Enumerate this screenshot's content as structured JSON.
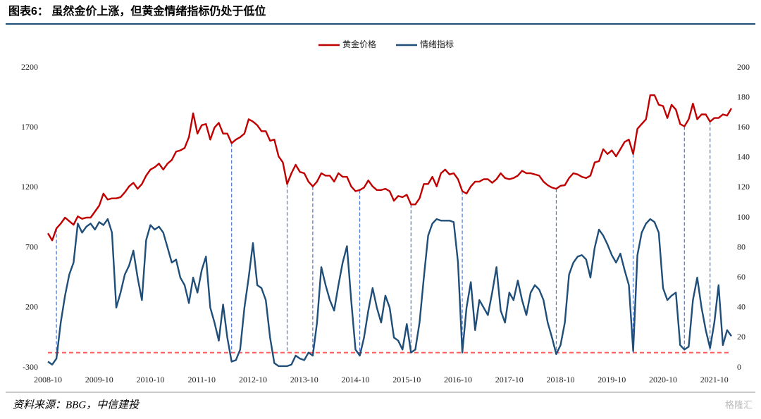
{
  "chart_data": {
    "type": "line",
    "title": "图表6： 虽然金价上涨，但黄金情绪指标仍处于低位",
    "source": "资料来源：BBG，中信建投",
    "watermark": "格隆汇",
    "x": [
      "2008-10",
      "2008-11",
      "2008-12",
      "2009-01",
      "2009-02",
      "2009-03",
      "2009-04",
      "2009-05",
      "2009-06",
      "2009-07",
      "2009-08",
      "2009-09",
      "2009-10",
      "2009-11",
      "2009-12",
      "2010-01",
      "2010-02",
      "2010-03",
      "2010-04",
      "2010-05",
      "2010-06",
      "2010-07",
      "2010-08",
      "2010-09",
      "2010-10",
      "2010-11",
      "2010-12",
      "2011-01",
      "2011-02",
      "2011-03",
      "2011-04",
      "2011-05",
      "2011-06",
      "2011-07",
      "2011-08",
      "2011-09",
      "2011-10",
      "2011-11",
      "2011-12",
      "2012-01",
      "2012-02",
      "2012-03",
      "2012-04",
      "2012-05",
      "2012-06",
      "2012-07",
      "2012-08",
      "2012-09",
      "2012-10",
      "2012-11",
      "2012-12",
      "2013-01",
      "2013-02",
      "2013-03",
      "2013-04",
      "2013-05",
      "2013-06",
      "2013-07",
      "2013-08",
      "2013-09",
      "2013-10",
      "2013-11",
      "2013-12",
      "2014-01",
      "2014-02",
      "2014-03",
      "2014-04",
      "2014-05",
      "2014-06",
      "2014-07",
      "2014-08",
      "2014-09",
      "2014-10",
      "2014-11",
      "2014-12",
      "2015-01",
      "2015-02",
      "2015-03",
      "2015-04",
      "2015-05",
      "2015-06",
      "2015-07",
      "2015-08",
      "2015-09",
      "2015-10",
      "2015-11",
      "2015-12",
      "2016-01",
      "2016-02",
      "2016-03",
      "2016-04",
      "2016-05",
      "2016-06",
      "2016-07",
      "2016-08",
      "2016-09",
      "2016-10",
      "2016-11",
      "2016-12",
      "2017-01",
      "2017-02",
      "2017-03",
      "2017-04",
      "2017-05",
      "2017-06",
      "2017-07",
      "2017-08",
      "2017-09",
      "2017-10",
      "2017-11",
      "2017-12",
      "2018-01",
      "2018-02",
      "2018-03",
      "2018-04",
      "2018-05",
      "2018-06",
      "2018-07",
      "2018-08",
      "2018-09",
      "2018-10",
      "2018-11",
      "2018-12",
      "2019-01",
      "2019-02",
      "2019-03",
      "2019-04",
      "2019-05",
      "2019-06",
      "2019-07",
      "2019-08",
      "2019-09",
      "2019-10",
      "2019-11",
      "2019-12",
      "2020-01",
      "2020-02",
      "2020-03",
      "2020-04",
      "2020-05",
      "2020-06",
      "2020-07",
      "2020-08",
      "2020-09",
      "2020-10",
      "2020-11",
      "2020-12",
      "2021-01",
      "2021-02",
      "2021-03",
      "2021-04",
      "2021-05",
      "2021-06",
      "2021-07",
      "2021-08",
      "2021-09",
      "2021-10",
      "2021-11",
      "2021-12",
      "2022-01",
      "2022-02"
    ],
    "xticks": [
      "2008-10",
      "2009-10",
      "2010-10",
      "2011-10",
      "2012-10",
      "2013-10",
      "2014-10",
      "2015-10",
      "2016-10",
      "2017-10",
      "2018-10",
      "2019-10",
      "2020-10",
      "2021-10"
    ],
    "series": [
      {
        "name": "黄金价格",
        "color": "#c00000",
        "axis": "y",
        "values": [
          820,
          760,
          860,
          900,
          950,
          920,
          890,
          960,
          940,
          950,
          950,
          1000,
          1050,
          1150,
          1100,
          1110,
          1110,
          1120,
          1160,
          1210,
          1240,
          1190,
          1230,
          1300,
          1350,
          1370,
          1400,
          1350,
          1400,
          1430,
          1500,
          1510,
          1530,
          1620,
          1820,
          1650,
          1720,
          1730,
          1600,
          1700,
          1740,
          1650,
          1650,
          1570,
          1600,
          1620,
          1650,
          1770,
          1750,
          1720,
          1670,
          1670,
          1590,
          1600,
          1460,
          1410,
          1230,
          1320,
          1390,
          1330,
          1320,
          1250,
          1210,
          1250,
          1320,
          1300,
          1300,
          1250,
          1320,
          1290,
          1290,
          1210,
          1170,
          1180,
          1200,
          1260,
          1210,
          1180,
          1180,
          1190,
          1170,
          1090,
          1130,
          1120,
          1140,
          1060,
          1060,
          1110,
          1230,
          1230,
          1290,
          1210,
          1320,
          1350,
          1310,
          1320,
          1270,
          1170,
          1150,
          1210,
          1250,
          1250,
          1270,
          1270,
          1240,
          1270,
          1320,
          1280,
          1270,
          1280,
          1300,
          1340,
          1320,
          1320,
          1310,
          1300,
          1250,
          1220,
          1200,
          1190,
          1215,
          1220,
          1280,
          1320,
          1310,
          1290,
          1280,
          1300,
          1410,
          1420,
          1520,
          1480,
          1510,
          1460,
          1520,
          1580,
          1600,
          1480,
          1690,
          1730,
          1770,
          1970,
          1970,
          1890,
          1880,
          1780,
          1890,
          1850,
          1730,
          1710,
          1770,
          1900,
          1770,
          1810,
          1810,
          1750,
          1780,
          1780,
          1810,
          1800,
          1860
        ]
      },
      {
        "name": "情绪指标",
        "color": "#1f4e79",
        "axis": "y2",
        "values": [
          4,
          2,
          6,
          30,
          48,
          62,
          70,
          96,
          90,
          94,
          96,
          92,
          97,
          95,
          99,
          90,
          40,
          50,
          62,
          68,
          78,
          60,
          45,
          85,
          95,
          92,
          94,
          90,
          80,
          70,
          72,
          60,
          55,
          43,
          60,
          50,
          65,
          74,
          40,
          30,
          18,
          42,
          20,
          4,
          5,
          12,
          40,
          60,
          83,
          55,
          53,
          45,
          20,
          3,
          1,
          1,
          1,
          2,
          8,
          6,
          5,
          10,
          8,
          30,
          67,
          55,
          45,
          38,
          55,
          70,
          81,
          45,
          12,
          8,
          20,
          38,
          53,
          40,
          30,
          48,
          40,
          20,
          18,
          12,
          29,
          10,
          12,
          30,
          60,
          88,
          96,
          99,
          98,
          98,
          98,
          97,
          70,
          10,
          40,
          57,
          25,
          45,
          40,
          35,
          50,
          67,
          38,
          30,
          50,
          45,
          58,
          45,
          35,
          50,
          55,
          52,
          45,
          30,
          20,
          9,
          15,
          30,
          62,
          70,
          74,
          75,
          72,
          60,
          80,
          92,
          88,
          82,
          75,
          70,
          76,
          65,
          55,
          11,
          75,
          90,
          96,
          99,
          97,
          90,
          53,
          45,
          48,
          50,
          15,
          12,
          14,
          45,
          60,
          40,
          25,
          13,
          30,
          55,
          15,
          25,
          21
        ]
      }
    ],
    "ylim": [
      -300,
      2200
    ],
    "yticks": [
      -300,
      200,
      700,
      1200,
      1700,
      2200
    ],
    "y2lim": [
      0,
      200
    ],
    "y2ticks": [
      0,
      20,
      40,
      60,
      80,
      100,
      120,
      140,
      160,
      180,
      200
    ],
    "threshold": {
      "value": 10,
      "axis": "y2",
      "color": "#ff5b5b"
    },
    "highlight_dates": [
      "2008-12",
      "2012-05",
      "2013-06",
      "2013-12",
      "2014-11",
      "2015-11",
      "2016-11",
      "2018-09",
      "2020-03",
      "2021-03",
      "2021-09"
    ],
    "highlight_color": "#4a74d6",
    "legend": "top"
  }
}
